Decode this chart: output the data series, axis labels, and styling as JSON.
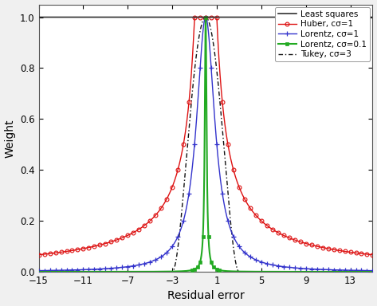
{
  "xlabel": "Residual error",
  "ylabel": "Weight",
  "xlim": [
    -15,
    15
  ],
  "ylim": [
    0,
    1.05
  ],
  "xticks": [
    -15,
    -11,
    -7,
    -3,
    1,
    5,
    9,
    13
  ],
  "yticks": [
    0.0,
    0.2,
    0.4,
    0.6,
    0.8,
    1.0
  ],
  "least_squares_color": "#303030",
  "huber_color": "#dd1111",
  "lorentz1_color": "#3333cc",
  "lorentz01_color": "#22aa22",
  "tukey_color": "#111111",
  "legend_labels": [
    "Least squares",
    "Huber, cσ=1",
    "Lorentz, cσ=1",
    "Lorentz, cσ=0.1",
    "Tukey, cσ=3"
  ],
  "huber_c": 1.0,
  "lorentz1_c": 1.0,
  "lorentz01_c": 0.1,
  "tukey_c": 3.0,
  "bg_color": "#f0f0f0",
  "axes_bg_color": "#ffffff"
}
